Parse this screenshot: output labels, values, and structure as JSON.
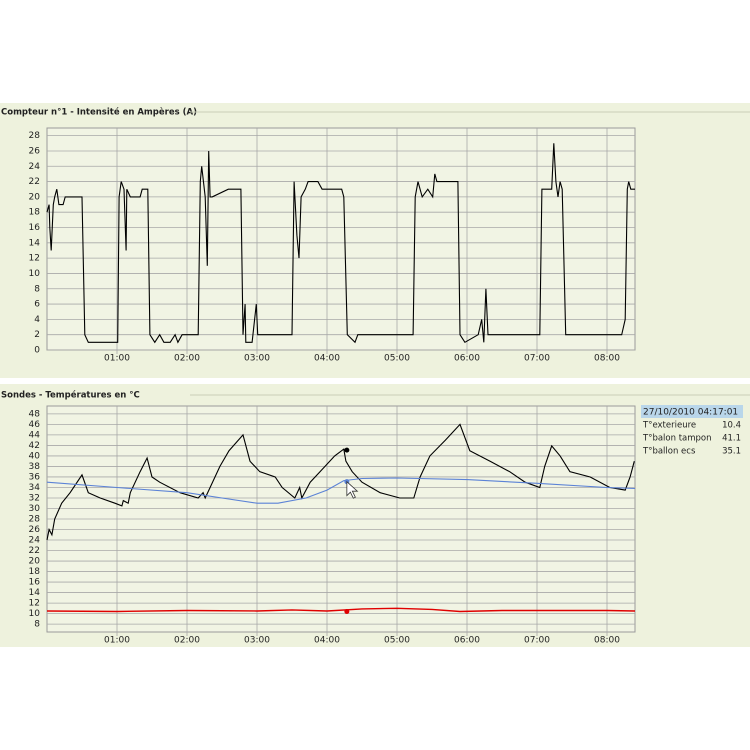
{
  "chart_data": [
    {
      "type": "line",
      "title": "Compteur n°1 - Intensité en Ampères (A)",
      "xlim": [
        0,
        8.4
      ],
      "xticks": [
        {
          "value": 1,
          "label": "01:00"
        },
        {
          "value": 2,
          "label": "02:00"
        },
        {
          "value": 3,
          "label": "03:00"
        },
        {
          "value": 4,
          "label": "04:00"
        },
        {
          "value": 5,
          "label": "05:00"
        },
        {
          "value": 6,
          "label": "06:00"
        },
        {
          "value": 7,
          "label": "07:00"
        },
        {
          "value": 8,
          "label": "08:00"
        }
      ],
      "ylim": [
        0,
        29
      ],
      "yticks": [
        0,
        2,
        4,
        6,
        8,
        10,
        12,
        14,
        16,
        18,
        20,
        22,
        24,
        26,
        28
      ],
      "grid": true,
      "series": [
        {
          "color": "#000000",
          "x": [
            0,
            0.03,
            0.04,
            0.06,
            0.09,
            0.11,
            0.14,
            0.17,
            0.23,
            0.26,
            0.5,
            0.54,
            0.59,
            1.01,
            1.03,
            1.06,
            1.1,
            1.13,
            1.14,
            1.19,
            1.33,
            1.36,
            1.44,
            1.47,
            1.54,
            1.61,
            1.67,
            1.76,
            1.83,
            1.87,
            1.93,
            2.16,
            2.19,
            2.21,
            2.26,
            2.29,
            2.31,
            2.33,
            2.36,
            2.59,
            2.77,
            2.8,
            2.83,
            2.84,
            2.93,
            2.99,
            3.01,
            3.5,
            3.53,
            3.57,
            3.6,
            3.63,
            3.69,
            3.73,
            3.87,
            3.93,
            4.21,
            4.24,
            4.29,
            4.4,
            4.44,
            5.23,
            5.26,
            5.3,
            5.36,
            5.44,
            5.51,
            5.54,
            5.57,
            5.87,
            5.9,
            5.97,
            6.16,
            6.21,
            6.24,
            6.27,
            6.3,
            7.04,
            7.07,
            7.21,
            7.24,
            7.27,
            7.3,
            7.33,
            7.36,
            7.41,
            8.21,
            8.26,
            8.29,
            8.31,
            8.34,
            8.4
          ],
          "values": [
            18,
            19,
            16,
            13,
            19,
            20,
            21,
            19,
            19,
            20,
            20,
            2,
            1,
            1,
            20,
            22,
            21,
            13,
            21,
            20,
            20,
            21,
            21,
            2,
            1,
            2,
            1,
            1,
            2,
            1,
            2,
            2,
            22,
            24,
            20,
            11,
            26,
            20,
            20,
            21,
            21,
            2,
            6,
            1,
            1,
            6,
            2,
            2,
            22,
            15,
            12,
            20,
            21,
            22,
            22,
            21,
            21,
            20,
            2,
            1,
            2,
            2,
            20,
            22,
            20,
            21,
            20,
            23,
            22,
            22,
            2,
            1,
            2,
            4,
            1,
            8,
            2,
            2,
            21,
            21,
            27,
            22,
            20,
            22,
            21,
            2,
            2,
            4,
            21,
            22,
            21,
            21
          ]
        }
      ]
    },
    {
      "type": "line",
      "title": "Sondes - Températures en °C",
      "xlim": [
        0,
        8.4
      ],
      "xticks": [
        {
          "value": 1,
          "label": "01:00"
        },
        {
          "value": 2,
          "label": "02:00"
        },
        {
          "value": 3,
          "label": "03:00"
        },
        {
          "value": 4,
          "label": "04:00"
        },
        {
          "value": 5,
          "label": "05:00"
        },
        {
          "value": 6,
          "label": "06:00"
        },
        {
          "value": 7,
          "label": "07:00"
        },
        {
          "value": 8,
          "label": "08:00"
        }
      ],
      "ylim": [
        6.5,
        49.5
      ],
      "yticks": [
        8,
        10,
        12,
        14,
        16,
        18,
        20,
        22,
        24,
        26,
        28,
        30,
        32,
        34,
        36,
        38,
        40,
        42,
        44,
        46,
        48
      ],
      "grid": true,
      "series": [
        {
          "name": "T°exterieure",
          "color": "#e00000",
          "x": [
            0,
            1,
            2,
            3,
            3.5,
            4,
            4.5,
            5,
            5.5,
            5.9,
            6.5,
            7,
            8,
            8.4
          ],
          "values": [
            10.5,
            10.4,
            10.6,
            10.5,
            10.7,
            10.5,
            10.9,
            11,
            10.8,
            10.4,
            10.6,
            10.6,
            10.6,
            10.5
          ]
        },
        {
          "name": "T°balon tampon",
          "color": "#000000",
          "x": [
            0,
            0.03,
            0.07,
            0.11,
            0.21,
            0.33,
            0.5,
            0.59,
            0.76,
            0.97,
            1.07,
            1.09,
            1.16,
            1.19,
            1.33,
            1.43,
            1.5,
            1.61,
            1.9,
            2.16,
            2.23,
            2.26,
            2.33,
            2.47,
            2.6,
            2.8,
            2.9,
            3.04,
            3.26,
            3.36,
            3.54,
            3.61,
            3.64,
            3.76,
            3.9,
            4.11,
            4.24,
            4.27,
            4.36,
            4.5,
            4.76,
            5.04,
            5.24,
            5.33,
            5.47,
            5.69,
            5.9,
            6.04,
            6.33,
            6.61,
            6.83,
            7.04,
            7.11,
            7.21,
            7.33,
            7.47,
            7.76,
            8.04,
            8.26,
            8.33,
            8.39
          ],
          "values": [
            24,
            26,
            25,
            28,
            31,
            33,
            36.4,
            33,
            32,
            31,
            30.5,
            31.5,
            31,
            33,
            37,
            39.6,
            36,
            35,
            33,
            32,
            33,
            32,
            34,
            38,
            41,
            44,
            39,
            37,
            36,
            34,
            32,
            34,
            32,
            35,
            37,
            40,
            41.3,
            39,
            37,
            35,
            33,
            32,
            32,
            36,
            40,
            43,
            46,
            41,
            39,
            37,
            35,
            34,
            38,
            41.9,
            40,
            37,
            36,
            34,
            33.5,
            36,
            39
          ]
        },
        {
          "name": "T°ballon ecs",
          "color": "#5b82d6",
          "x": [
            0,
            1,
            2,
            2.5,
            3,
            3.3,
            3.7,
            4,
            4.24,
            4.5,
            5,
            6,
            7,
            8,
            8.4
          ],
          "values": [
            35,
            34,
            33,
            32,
            31,
            31,
            32,
            33.5,
            35.3,
            35.7,
            35.8,
            35.5,
            34.8,
            34,
            33.8
          ]
        }
      ],
      "tooltip": {
        "title": "27/10/2010 04:17:01",
        "values": [
          10.4,
          41.1,
          35.1
        ]
      }
    }
  ]
}
